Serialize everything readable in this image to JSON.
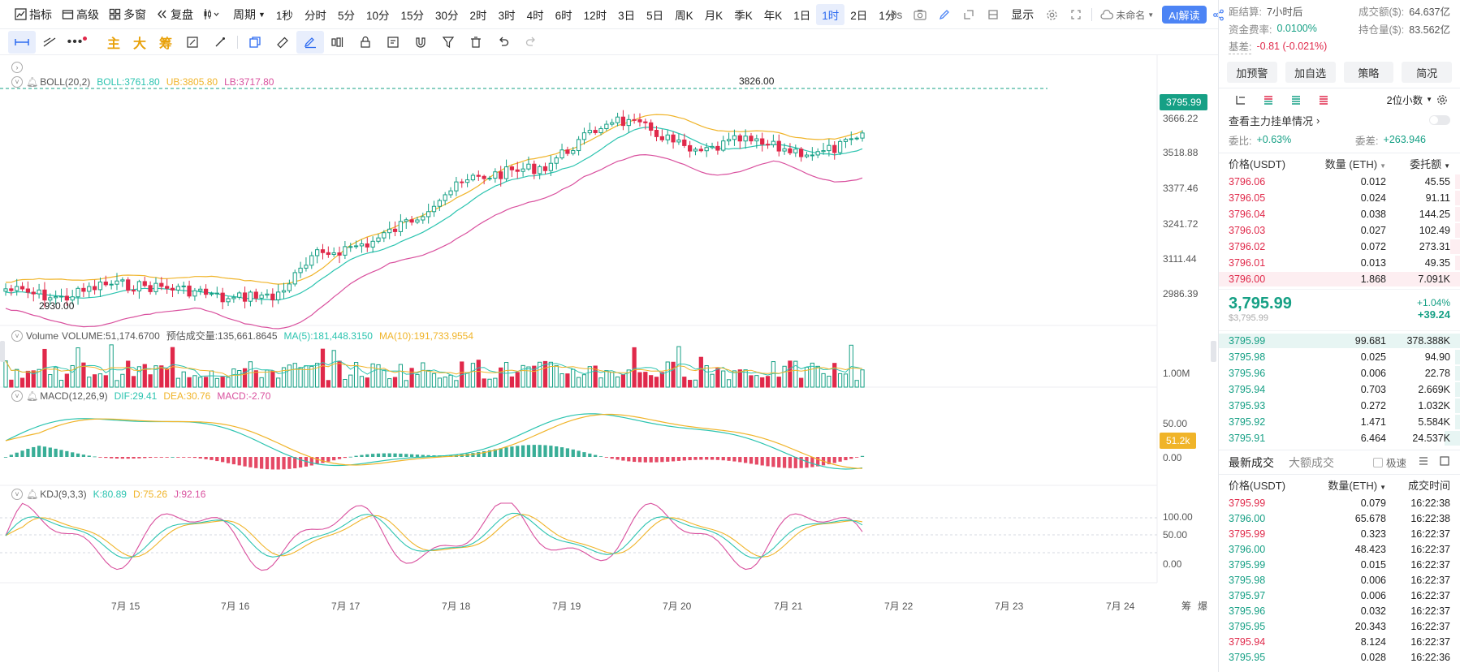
{
  "toolbar": {
    "indicators": "指标",
    "advanced": "高级",
    "multi_window": "多窗",
    "replay": "复盘",
    "period": "周期",
    "intervals": [
      "1秒",
      "分时",
      "5分",
      "10分",
      "15分",
      "30分",
      "2时",
      "3时",
      "4时",
      "6时",
      "12时",
      "3日",
      "5日",
      "周K",
      "月K",
      "季K",
      "年K",
      "1日",
      "1时",
      "2日",
      "1分"
    ],
    "active_interval": "1时",
    "delay": "0s",
    "display": "显示",
    "unnamed": "未命名",
    "ai": "AI解读"
  },
  "draw_tools": {
    "main": "主",
    "big": "大",
    "chip": "筹"
  },
  "chart": {
    "boll": {
      "name": "BOLL(20,2)",
      "boll": "BOLL:3761.80",
      "ub": "UB:3805.80",
      "lb": "LB:3717.80"
    },
    "volume": {
      "name": "Volume",
      "vol": "VOLUME:51,174.6700",
      "est": "预估成交量:135,661.8645",
      "ma5": "MA(5):181,448.3150",
      "ma10": "MA(10):191,733.9554"
    },
    "macd": {
      "name": "MACD(12,26,9)",
      "dif": "DIF:29.41",
      "dea": "DEA:30.76",
      "macd": "MACD:-2.70"
    },
    "kdj": {
      "name": "KDJ(9,3,3)",
      "k": "K:80.89",
      "d": "D:75.26",
      "j": "J:92.16"
    },
    "price_ticks": [
      "3666.22",
      "3518.88",
      "3377.46",
      "3241.72",
      "3111.44",
      "2986.39"
    ],
    "current_price": "3795.99",
    "high_label": "3826.00",
    "low_label": "2930.00",
    "vol_tick": "1.00M",
    "vol_tag": "51.2k",
    "macd_ticks": [
      "50.00",
      "0.00"
    ],
    "kdj_ticks": [
      "100.00",
      "50.00",
      "0.00"
    ],
    "date_labels": [
      "7月 15",
      "7月 16",
      "7月 17",
      "7月 18",
      "7月 19",
      "7月 20",
      "7月 21",
      "7月 22",
      "7月 23",
      "7月 24"
    ],
    "corner_labels": [
      "筹",
      "爆"
    ],
    "colors": {
      "up": "#16a085",
      "down": "#e0294a",
      "boll_mid": "#2cc4b0",
      "boll_ub": "#f0b429",
      "boll_lb": "#d9509e",
      "ma5": "#2cc4b0",
      "ma10": "#f0b429"
    }
  },
  "right": {
    "stats": {
      "settle_k": "距结算:",
      "settle_v": "7小时后",
      "turnover_k": "成交额($):",
      "turnover_v": "64.637亿",
      "funding_k": "资金费率:",
      "funding_v": "0.0100%",
      "oi_k": "持仓量($):",
      "oi_v": "83.562亿",
      "basis_k": "基差:",
      "basis_v": "-0.81 (-0.021%)"
    },
    "buttons": [
      "加预警",
      "加自选",
      "策略",
      "简况"
    ],
    "decimals": "2位小数",
    "main_orders": "查看主力挂单情况",
    "ratio_k": "委比:",
    "ratio_v": "+0.63%",
    "diff_k": "委差:",
    "diff_v": "+263.946",
    "ob_headers": {
      "price": "价格(USDT)",
      "amount": "数量 (ETH)",
      "total": "委托额"
    },
    "asks": [
      {
        "p": "3796.06",
        "a": "0.012",
        "t": "45.55"
      },
      {
        "p": "3796.05",
        "a": "0.024",
        "t": "91.11"
      },
      {
        "p": "3796.04",
        "a": "0.038",
        "t": "144.25"
      },
      {
        "p": "3796.03",
        "a": "0.027",
        "t": "102.49"
      },
      {
        "p": "3796.02",
        "a": "0.072",
        "t": "273.31"
      },
      {
        "p": "3796.01",
        "a": "0.013",
        "t": "49.35"
      },
      {
        "p": "3796.00",
        "a": "1.868",
        "t": "7.091K"
      }
    ],
    "last_price": "3,795.99",
    "last_price_usd": "$3,795.99",
    "change_pct": "+1.04%",
    "change_abs": "+39.24",
    "bids": [
      {
        "p": "3795.99",
        "a": "99.681",
        "t": "378.388K"
      },
      {
        "p": "3795.98",
        "a": "0.025",
        "t": "94.90"
      },
      {
        "p": "3795.96",
        "a": "0.006",
        "t": "22.78"
      },
      {
        "p": "3795.94",
        "a": "0.703",
        "t": "2.669K"
      },
      {
        "p": "3795.93",
        "a": "0.272",
        "t": "1.032K"
      },
      {
        "p": "3795.92",
        "a": "1.471",
        "t": "5.584K"
      },
      {
        "p": "3795.91",
        "a": "6.464",
        "t": "24.537K"
      }
    ],
    "tabs": [
      "最新成交",
      "大额成交"
    ],
    "fast": "极速",
    "trade_headers": {
      "price": "价格(USDT)",
      "amount": "数量(ETH)",
      "time": "成交时间"
    },
    "trades": [
      {
        "p": "3795.99",
        "a": "0.079",
        "t": "16:22:38",
        "side": "down"
      },
      {
        "p": "3796.00",
        "a": "65.678",
        "t": "16:22:38",
        "side": "up"
      },
      {
        "p": "3795.99",
        "a": "0.323",
        "t": "16:22:37",
        "side": "down"
      },
      {
        "p": "3796.00",
        "a": "48.423",
        "t": "16:22:37",
        "side": "up"
      },
      {
        "p": "3795.99",
        "a": "0.015",
        "t": "16:22:37",
        "side": "up"
      },
      {
        "p": "3795.98",
        "a": "0.006",
        "t": "16:22:37",
        "side": "up"
      },
      {
        "p": "3795.97",
        "a": "0.006",
        "t": "16:22:37",
        "side": "up"
      },
      {
        "p": "3795.96",
        "a": "0.032",
        "t": "16:22:37",
        "side": "up"
      },
      {
        "p": "3795.95",
        "a": "20.343",
        "t": "16:22:37",
        "side": "up"
      },
      {
        "p": "3795.94",
        "a": "8.124",
        "t": "16:22:37",
        "side": "down"
      },
      {
        "p": "3795.95",
        "a": "0.028",
        "t": "16:22:36",
        "side": "up"
      }
    ]
  }
}
